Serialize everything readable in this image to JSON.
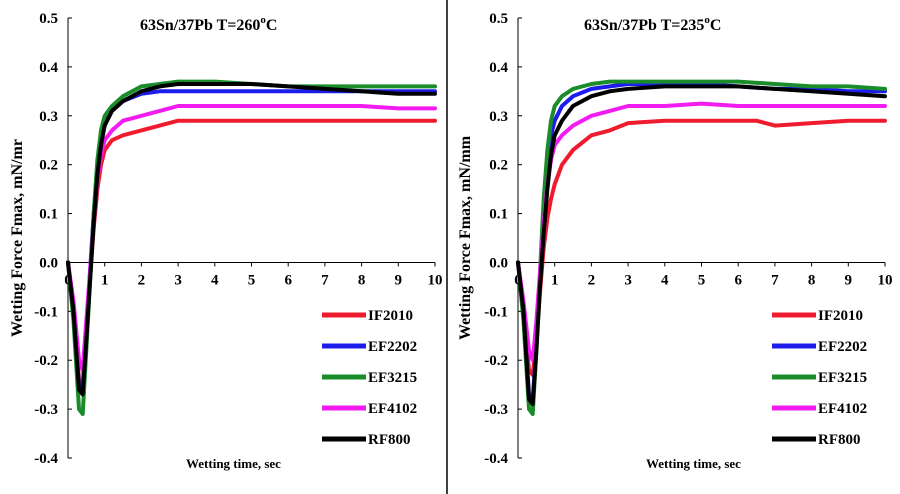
{
  "chart_data": [
    {
      "type": "line",
      "title": "63Sn/37Pb T=260",
      "title_sup": "o",
      "title_unit": "C",
      "xlabel": "Wetting time, sec",
      "ylabel": "Wetting Force Fmax, mN/mr",
      "xlim": [
        0,
        10
      ],
      "ylim": [
        -0.4,
        0.5
      ],
      "xticks": [
        0,
        1,
        2,
        3,
        4,
        5,
        6,
        7,
        8,
        9,
        10
      ],
      "yticks": [
        -0.4,
        -0.3,
        -0.2,
        -0.1,
        0.0,
        0.1,
        0.2,
        0.3,
        0.4,
        0.5
      ],
      "ytick_labels": [
        "-0.4",
        "-0.3",
        "-0.2",
        "-0.1",
        "0.0",
        "0.1",
        "0.2",
        "0.3",
        "0.4",
        "0.5"
      ],
      "xtick_labels": [
        "0",
        "1",
        "2",
        "3",
        "4",
        "5",
        "6",
        "7",
        "8",
        "9",
        "10"
      ],
      "legend_position": "bottom-right",
      "series": [
        {
          "name": "IF2010",
          "color": "#ee1c2e",
          "x": [
            0,
            0.15,
            0.3,
            0.4,
            0.5,
            0.6,
            0.7,
            0.8,
            0.9,
            1.0,
            1.2,
            1.5,
            2.0,
            2.5,
            3.0,
            4.0,
            5.0,
            6.0,
            7.0,
            8.0,
            9.0,
            10.0
          ],
          "y": [
            0,
            -0.1,
            -0.24,
            -0.25,
            -0.14,
            -0.03,
            0.07,
            0.15,
            0.2,
            0.23,
            0.25,
            0.26,
            0.27,
            0.28,
            0.29,
            0.29,
            0.29,
            0.29,
            0.29,
            0.29,
            0.29,
            0.29
          ]
        },
        {
          "name": "EF2202",
          "color": "#1c1ced",
          "x": [
            0,
            0.15,
            0.3,
            0.4,
            0.5,
            0.6,
            0.7,
            0.8,
            0.9,
            1.0,
            1.2,
            1.5,
            2.0,
            2.5,
            3.0,
            4.0,
            5.0,
            6.0,
            7.0,
            8.0,
            9.0,
            10.0
          ],
          "y": [
            0,
            -0.1,
            -0.25,
            -0.26,
            -0.15,
            -0.02,
            0.1,
            0.2,
            0.26,
            0.29,
            0.31,
            0.33,
            0.345,
            0.35,
            0.35,
            0.35,
            0.35,
            0.35,
            0.35,
            0.35,
            0.35,
            0.35
          ]
        },
        {
          "name": "EF3215",
          "color": "#1a8c2a",
          "x": [
            0,
            0.15,
            0.3,
            0.4,
            0.5,
            0.6,
            0.7,
            0.8,
            0.9,
            1.0,
            1.2,
            1.5,
            2.0,
            2.5,
            3.0,
            4.0,
            5.0,
            6.0,
            7.0,
            8.0,
            9.0,
            10.0
          ],
          "y": [
            0,
            -0.12,
            -0.3,
            -0.31,
            -0.18,
            -0.04,
            0.1,
            0.21,
            0.27,
            0.3,
            0.32,
            0.34,
            0.36,
            0.365,
            0.37,
            0.37,
            0.365,
            0.36,
            0.36,
            0.36,
            0.36,
            0.36
          ]
        },
        {
          "name": "EF4102",
          "color": "#f21cf2",
          "x": [
            0,
            0.15,
            0.3,
            0.4,
            0.5,
            0.6,
            0.7,
            0.8,
            0.9,
            1.0,
            1.2,
            1.5,
            2.0,
            2.5,
            3.0,
            4.0,
            5.0,
            6.0,
            7.0,
            8.0,
            9.0,
            10.0
          ],
          "y": [
            0,
            -0.08,
            -0.2,
            -0.22,
            -0.12,
            -0.02,
            0.08,
            0.17,
            0.22,
            0.25,
            0.27,
            0.29,
            0.3,
            0.31,
            0.32,
            0.32,
            0.32,
            0.32,
            0.32,
            0.32,
            0.315,
            0.315
          ]
        },
        {
          "name": "RF800",
          "color": "#000000",
          "x": [
            0,
            0.15,
            0.3,
            0.4,
            0.5,
            0.6,
            0.7,
            0.8,
            0.9,
            1.0,
            1.2,
            1.5,
            2.0,
            2.5,
            3.0,
            4.0,
            5.0,
            6.0,
            7.0,
            8.0,
            9.0,
            10.0
          ],
          "y": [
            0,
            -0.1,
            -0.26,
            -0.27,
            -0.16,
            -0.04,
            0.08,
            0.18,
            0.24,
            0.28,
            0.31,
            0.33,
            0.35,
            0.36,
            0.365,
            0.365,
            0.365,
            0.36,
            0.355,
            0.35,
            0.345,
            0.345
          ]
        }
      ]
    },
    {
      "type": "line",
      "title": "63Sn/37Pb T=235",
      "title_sup": "o",
      "title_unit": "C",
      "xlabel": "Wetting time, sec",
      "ylabel": "Wetting Force Fmax, mN/mm",
      "xlim": [
        0,
        10
      ],
      "ylim": [
        -0.4,
        0.5
      ],
      "xticks": [
        0,
        1,
        2,
        3,
        4,
        5,
        6,
        7,
        8,
        9,
        10
      ],
      "yticks": [
        -0.4,
        -0.3,
        -0.2,
        -0.1,
        0.0,
        0.1,
        0.2,
        0.3,
        0.4,
        0.5
      ],
      "ytick_labels": [
        "-0.4",
        "-0.3",
        "-0.2",
        "-0.1",
        "0.0",
        "0.1",
        "0.2",
        "0.3",
        "0.4",
        "0.5"
      ],
      "xtick_labels": [
        "0",
        "1",
        "2",
        "3",
        "4",
        "5",
        "6",
        "7",
        "8",
        "9",
        "10"
      ],
      "legend_position": "bottom-right",
      "series": [
        {
          "name": "IF2010",
          "color": "#ee1c2e",
          "x": [
            0,
            0.15,
            0.3,
            0.4,
            0.5,
            0.6,
            0.7,
            0.8,
            0.9,
            1.0,
            1.2,
            1.5,
            2.0,
            2.5,
            3.0,
            4.0,
            5.0,
            6.0,
            6.5,
            7.0,
            8.0,
            9.0,
            10.0
          ],
          "y": [
            0,
            -0.1,
            -0.22,
            -0.23,
            -0.16,
            -0.06,
            0.03,
            0.09,
            0.13,
            0.16,
            0.2,
            0.23,
            0.26,
            0.27,
            0.285,
            0.29,
            0.29,
            0.29,
            0.29,
            0.28,
            0.285,
            0.29,
            0.29
          ]
        },
        {
          "name": "EF2202",
          "color": "#1c1ced",
          "x": [
            0,
            0.15,
            0.3,
            0.4,
            0.5,
            0.6,
            0.7,
            0.8,
            0.9,
            1.0,
            1.2,
            1.5,
            2.0,
            2.5,
            3.0,
            4.0,
            5.0,
            6.0,
            7.0,
            8.0,
            9.0,
            10.0
          ],
          "y": [
            0,
            -0.1,
            -0.27,
            -0.28,
            -0.17,
            -0.03,
            0.1,
            0.2,
            0.26,
            0.29,
            0.32,
            0.34,
            0.355,
            0.36,
            0.365,
            0.365,
            0.365,
            0.36,
            0.355,
            0.355,
            0.35,
            0.35
          ]
        },
        {
          "name": "EF3215",
          "color": "#1a8c2a",
          "x": [
            0,
            0.15,
            0.3,
            0.4,
            0.5,
            0.6,
            0.7,
            0.8,
            0.9,
            1.0,
            1.2,
            1.5,
            2.0,
            2.5,
            3.0,
            4.0,
            5.0,
            6.0,
            7.0,
            8.0,
            9.0,
            10.0
          ],
          "y": [
            0,
            -0.12,
            -0.3,
            -0.31,
            -0.18,
            -0.02,
            0.13,
            0.23,
            0.29,
            0.32,
            0.34,
            0.355,
            0.365,
            0.37,
            0.37,
            0.37,
            0.37,
            0.37,
            0.365,
            0.36,
            0.36,
            0.355
          ]
        },
        {
          "name": "EF4102",
          "color": "#f21cf2",
          "x": [
            0,
            0.15,
            0.3,
            0.4,
            0.5,
            0.6,
            0.7,
            0.8,
            0.9,
            1.0,
            1.2,
            1.5,
            2.0,
            2.5,
            3.0,
            4.0,
            5.0,
            6.0,
            7.0,
            8.0,
            9.0,
            10.0
          ],
          "y": [
            0,
            -0.08,
            -0.18,
            -0.2,
            -0.12,
            -0.02,
            0.08,
            0.16,
            0.21,
            0.24,
            0.26,
            0.28,
            0.3,
            0.31,
            0.32,
            0.32,
            0.325,
            0.32,
            0.32,
            0.32,
            0.32,
            0.32
          ]
        },
        {
          "name": "RF800",
          "color": "#000000",
          "x": [
            0,
            0.15,
            0.3,
            0.4,
            0.5,
            0.6,
            0.7,
            0.8,
            0.9,
            1.0,
            1.2,
            1.5,
            2.0,
            2.5,
            3.0,
            4.0,
            5.0,
            6.0,
            7.0,
            8.0,
            9.0,
            10.0
          ],
          "y": [
            0,
            -0.1,
            -0.28,
            -0.29,
            -0.18,
            -0.05,
            0.06,
            0.15,
            0.22,
            0.26,
            0.29,
            0.32,
            0.34,
            0.35,
            0.355,
            0.36,
            0.36,
            0.36,
            0.355,
            0.35,
            0.345,
            0.34
          ]
        }
      ]
    }
  ]
}
